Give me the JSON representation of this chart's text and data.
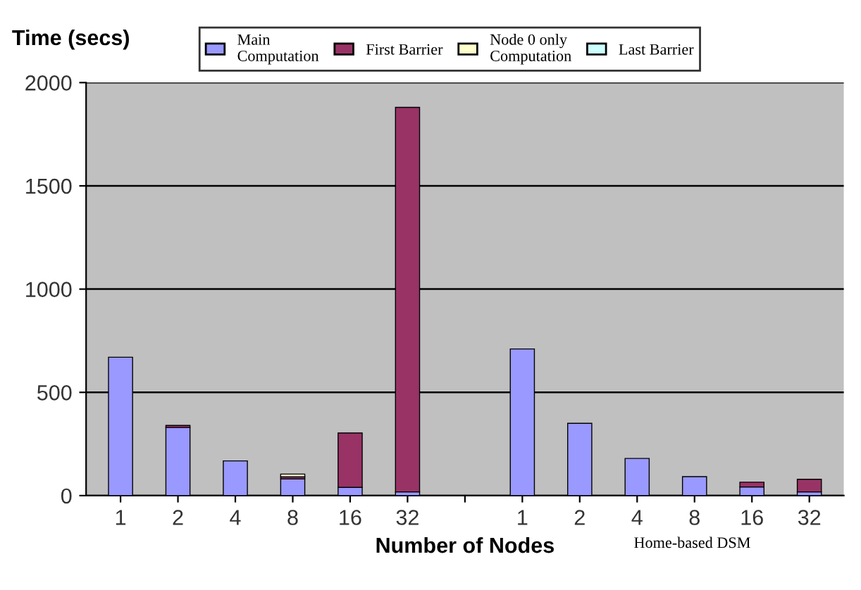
{
  "chart_data": {
    "type": "bar",
    "stacked": true,
    "ylabel": "Time (secs)",
    "xlabel": "Number of Nodes",
    "categories": [
      "1",
      "2",
      "4",
      "8",
      "16",
      "32",
      null,
      "1",
      "2",
      "4",
      "8",
      "16",
      "32"
    ],
    "series": [
      {
        "name": "Main\nComputation",
        "color": "#9999ff",
        "values": [
          670,
          330,
          168,
          81,
          40,
          18,
          null,
          710,
          350,
          180,
          92,
          42,
          18
        ]
      },
      {
        "name": "First Barrier",
        "color": "#993366",
        "values": [
          0,
          10,
          0,
          10,
          263,
          1862,
          null,
          0,
          0,
          0,
          0,
          23,
          61
        ]
      },
      {
        "name": "Node 0 only\nComputation",
        "color": "#ffffcc",
        "values": [
          0,
          0,
          0,
          13,
          0,
          0,
          null,
          0,
          0,
          0,
          0,
          0,
          0
        ]
      },
      {
        "name": "Last Barrier",
        "color": "#ccffff",
        "values": [
          0,
          0,
          0,
          0,
          0,
          0,
          null,
          0,
          0,
          0,
          0,
          0,
          0
        ]
      }
    ],
    "annotations": [
      "Home-based DSM"
    ],
    "ylim": [
      0,
      2000
    ],
    "yticks": [
      0,
      500,
      1000,
      1500,
      2000
    ],
    "grid": "y",
    "legend": "top"
  }
}
